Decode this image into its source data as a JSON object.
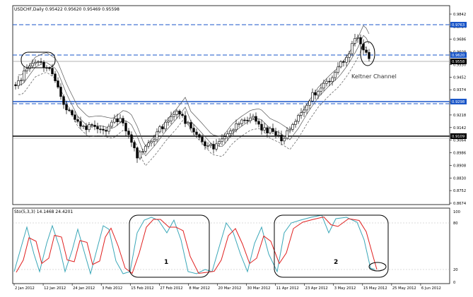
{
  "main_chart": {
    "header": "USDCHF,Daily  0.95422 0.95620 0.95469 0.95598",
    "price_ticks": [
      "0.9842",
      "0.9764",
      "0.9686",
      "0.9608",
      "0.9530",
      "0.9452",
      "0.9374",
      "0.9296",
      "0.9218",
      "0.9142",
      "0.9064",
      "0.8986",
      "0.8908",
      "0.8830",
      "0.8752",
      "0.8674"
    ],
    "price_labels": [
      {
        "text": "0.9763",
        "bg": "#1a56c8",
        "fg": "#ffffff"
      },
      {
        "text": "0.9620",
        "bg": "#1a56c8",
        "fg": "#ffffff"
      },
      {
        "text": "0.9558",
        "bg": "#000000",
        "fg": "#ffffff"
      },
      {
        "text": "0.9298",
        "bg": "#1a56c8",
        "fg": "#ffffff"
      },
      {
        "text": "0.9109",
        "bg": "#000000",
        "fg": "#ffffff"
      }
    ],
    "annotation": "Keltner Channel"
  },
  "oscillator": {
    "header": "Sto(5,3,3) 14.1468 24.4201",
    "ticks": [
      "100",
      "80",
      "20",
      "0"
    ],
    "labels": [
      "1",
      "2"
    ]
  },
  "date_axis": [
    "2 Jan 2012",
    "12 Jan 2012",
    "24 Jan 2012",
    "3 Feb 2012",
    "15 Feb 2012",
    "27 Feb 2012",
    "8 Mar 2012",
    "20 Mar 2012",
    "30 Mar 2012",
    "11 Apr 2012",
    "23 Apr 2012",
    "3 May 2012",
    "15 May 2012",
    "25 May 2012",
    "6 Jun 2012"
  ],
  "colors": {
    "level_line": "#1a56c8",
    "support_line": "#000000",
    "stoch_main": "#3aa7b8",
    "stoch_signal": "#e0201f"
  }
}
